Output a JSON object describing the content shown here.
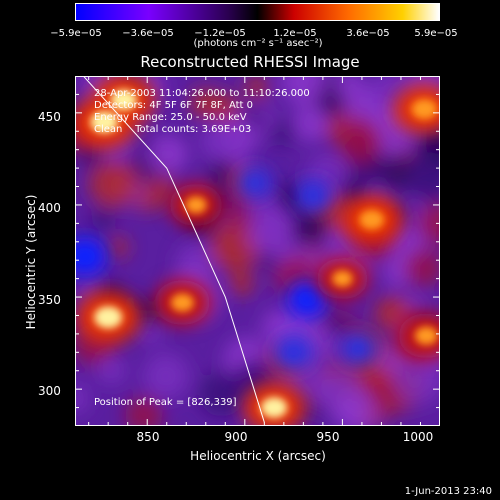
{
  "colorbar": {
    "ticks": [
      "−5.9e−05",
      "−3.6e−05",
      "−1.2e−05",
      "1.2e−05",
      "3.6e−05",
      "5.9e−05"
    ],
    "unit": "(photons cm⁻² s⁻¹ asec⁻²)",
    "colors": [
      "#0000ff",
      "#7700ff",
      "#a040e0",
      "#4b0082",
      "#cc0000",
      "#ff6600",
      "#ffd000",
      "#ffffff"
    ]
  },
  "chart_data": {
    "type": "heatmap",
    "title": "Reconstructed RHESSI Image",
    "xlabel": "Heliocentric X (arcsec)",
    "ylabel": "Heliocentric Y (arcsec)",
    "xlim": [
      813,
      1000
    ],
    "ylim": [
      280,
      470
    ],
    "xticks": [
      "850",
      "900",
      "950",
      "1000"
    ],
    "yticks": [
      "450",
      "400",
      "350",
      "300"
    ],
    "colorbar_range": [
      -5.9e-05,
      5.9e-05
    ],
    "peak_position": [
      826,
      339
    ],
    "hot_spots": [
      {
        "x": 828,
        "y": 445,
        "level": 1.0
      },
      {
        "x": 838,
        "y": 457,
        "level": 0.9
      },
      {
        "x": 830,
        "y": 339,
        "level": 1.0
      },
      {
        "x": 868,
        "y": 347,
        "level": 0.7
      },
      {
        "x": 992,
        "y": 452,
        "level": 0.85
      },
      {
        "x": 965,
        "y": 392,
        "level": 0.8
      },
      {
        "x": 915,
        "y": 290,
        "level": 0.9
      },
      {
        "x": 993,
        "y": 329,
        "level": 0.7
      },
      {
        "x": 875,
        "y": 400,
        "level": 0.6
      },
      {
        "x": 950,
        "y": 360,
        "level": 0.55
      }
    ],
    "cold_spots": [
      {
        "x": 818,
        "y": 372,
        "level": 1.0
      },
      {
        "x": 932,
        "y": 349,
        "level": 0.9
      },
      {
        "x": 925,
        "y": 320,
        "level": 0.8
      },
      {
        "x": 958,
        "y": 322,
        "level": 0.75
      },
      {
        "x": 905,
        "y": 412,
        "level": 0.6
      },
      {
        "x": 935,
        "y": 405,
        "level": 0.65
      }
    ],
    "limb": [
      [
        813,
        475
      ],
      [
        860,
        420
      ],
      [
        890,
        350
      ],
      [
        910,
        282
      ]
    ]
  },
  "info": {
    "line1": "28-Apr-2003 11:04:26.000 to 11:10:26.000",
    "line2": "Detectors: 4F 5F 6F 7F 8F, Att 0",
    "line3": "Energy Range: 25.0 - 50.0 keV",
    "line4": "Clean    Total counts: 3.69E+03",
    "peak": "Position of Peak = [826,339]"
  },
  "footer": {
    "timestamp": "1-Jun-2013 23:40"
  }
}
